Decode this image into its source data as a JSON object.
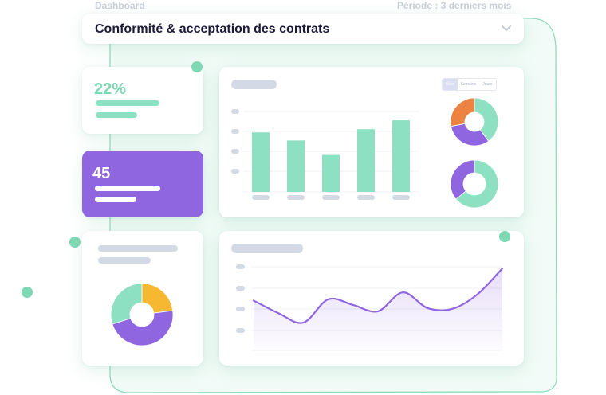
{
  "header": {
    "breadcrumb": "Dashboard",
    "period": "Période : 3 derniers mois"
  },
  "dropdown": {
    "title": "Conformité & acceptation des contrats",
    "icon": "chevron-down-icon"
  },
  "kpis": [
    {
      "value": "22%",
      "color": "#7dd8b3"
    },
    {
      "value": "45",
      "color": "#9b6fe0"
    }
  ],
  "tabs": {
    "items": [
      "Mois",
      "Semaine",
      "Jours"
    ],
    "active": 0
  },
  "colors": {
    "green": "#8ee0c2",
    "purple": "#9066e0",
    "orange": "#ee8341",
    "yellow": "#f6b731",
    "placeholder": "#d4d9e6"
  },
  "chart_data": [
    {
      "type": "bar",
      "categories": [
        "",
        "",
        "",
        "",
        ""
      ],
      "values": [
        0.74,
        0.64,
        0.46,
        0.78,
        0.89
      ]
    },
    {
      "type": "pie",
      "values": [
        40,
        32,
        28
      ],
      "colors": [
        "#8ee0c2",
        "#9066e0",
        "#ee8341"
      ]
    },
    {
      "type": "pie",
      "values": [
        64,
        36
      ],
      "colors": [
        "#8ee0c2",
        "#9066e0"
      ]
    },
    {
      "type": "pie",
      "values": [
        23,
        47,
        30
      ],
      "colors": [
        "#f6b731",
        "#9066e0",
        "#8ee0c2"
      ]
    },
    {
      "type": "area",
      "x": [
        0,
        1,
        2,
        3,
        4,
        5,
        6,
        7,
        8,
        9,
        10
      ],
      "values": [
        0.45,
        0.25,
        0.1,
        0.47,
        0.38,
        0.28,
        0.58,
        0.33,
        0.32,
        0.55,
        0.96
      ]
    }
  ]
}
